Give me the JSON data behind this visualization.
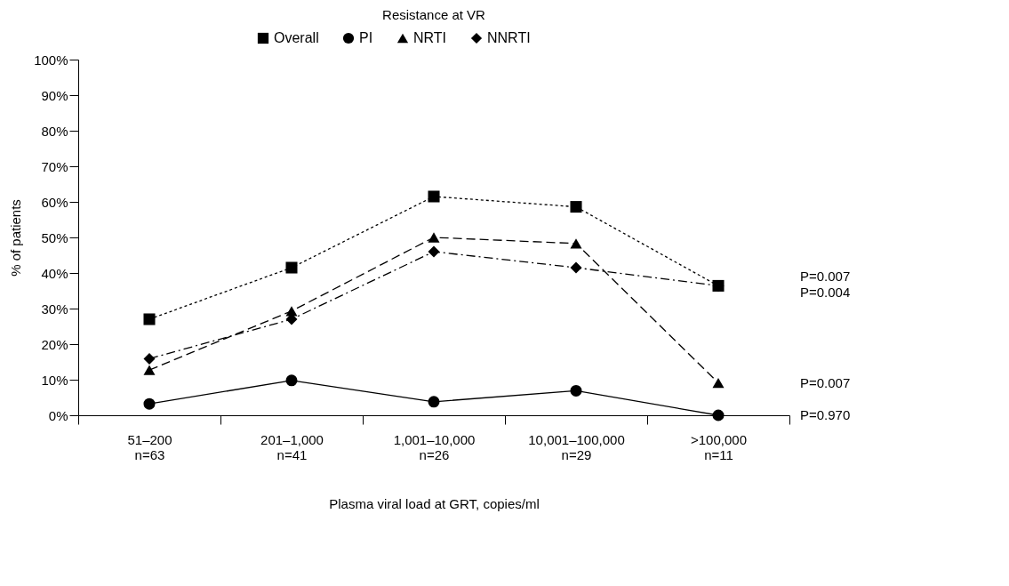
{
  "chart_data": {
    "type": "line",
    "title": "Resistance at VR",
    "xlabel": "Plasma viral load at GRT, copies/ml",
    "ylabel": "% of patients",
    "categories": [
      "51–200\nn=63",
      "201–1,000\nn=41",
      "1,001–10,000\nn=26",
      "10,001–100,000\nn=29",
      ">100,000\nn=11"
    ],
    "series": [
      {
        "name": "Overall",
        "color": "#000000",
        "marker": "square",
        "line_style": "dotted",
        "values": [
          27,
          41.5,
          61.5,
          58.6,
          36.4
        ]
      },
      {
        "name": "PI",
        "color": "#000000",
        "marker": "circle",
        "line_style": "solid",
        "values": [
          3.2,
          9.8,
          3.8,
          6.9,
          0
        ]
      },
      {
        "name": "NRTI",
        "color": "#000000",
        "marker": "triangle",
        "line_style": "dashed",
        "values": [
          12.7,
          29.3,
          50,
          48.3,
          9.1
        ]
      },
      {
        "name": "NNRTI",
        "color": "#000000",
        "marker": "diamond",
        "line_style": "dashdot",
        "values": [
          15.9,
          27,
          46,
          41.5,
          36.4
        ]
      }
    ],
    "ylim": [
      0,
      100
    ],
    "yticks": [
      {
        "value": 0,
        "label": "0%"
      },
      {
        "value": 10,
        "label": "10%"
      },
      {
        "value": 20,
        "label": "20%"
      },
      {
        "value": 30,
        "label": "30%"
      },
      {
        "value": 40,
        "label": "40%"
      },
      {
        "value": 50,
        "label": "50%"
      },
      {
        "value": 60,
        "label": "60%"
      },
      {
        "value": 70,
        "label": "70%"
      },
      {
        "value": 80,
        "label": "80%"
      },
      {
        "value": 90,
        "label": "90%"
      },
      {
        "value": 100,
        "label": "100%"
      }
    ],
    "grid": false,
    "legend": "top",
    "annotations": [
      "P=0.007",
      "P=0.004",
      "P=0.007",
      "P=0.970"
    ]
  }
}
